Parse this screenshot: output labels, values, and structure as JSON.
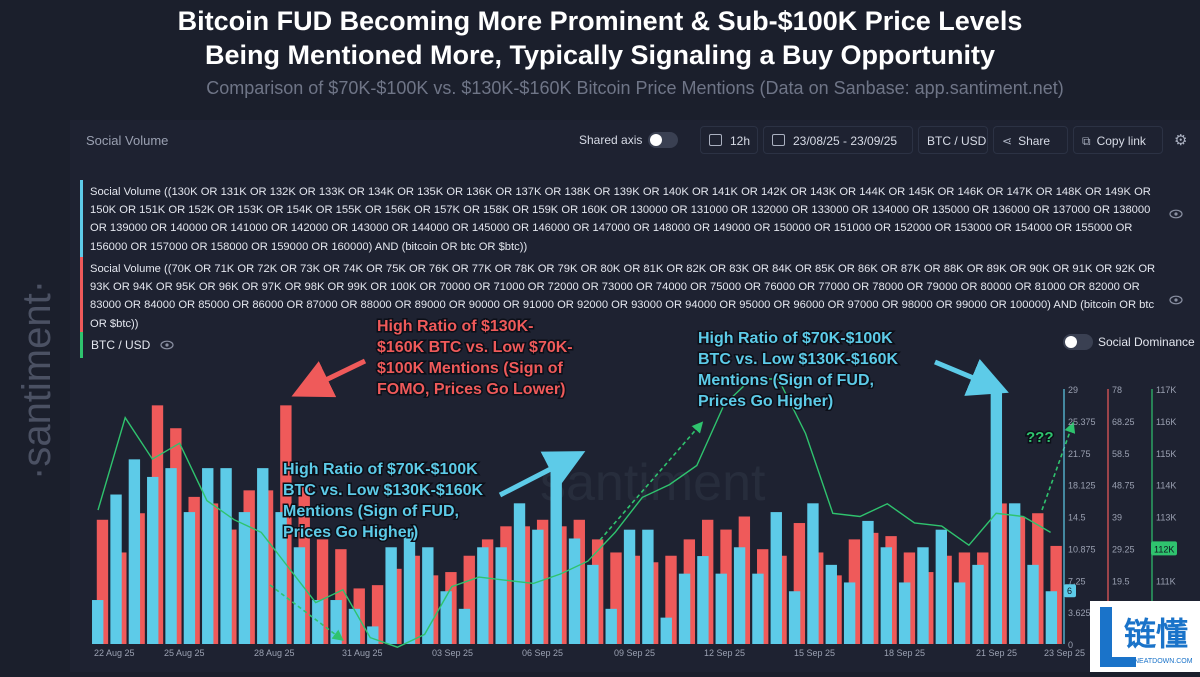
{
  "header": {
    "title_line1": "Bitcoin FUD Becoming More Prominent & Sub-$100K Price Levels",
    "title_line2": "Being Mentioned More, Typically Signaling a Buy Opportunity",
    "subtitle": "Comparison of $70K-$100K vs. $130K-$160K Bitcoin Price Mentions (Data on Sanbase: app.santiment.net)"
  },
  "brand": {
    "side_watermark": "·santiment·",
    "chart_watermark": "santiment",
    "logo_text": "链懂",
    "logo_sub": "NEATDOWN.COM"
  },
  "toolbar": {
    "panel_label": "Social Volume",
    "shared_axis": "Shared axis",
    "interval": "12h",
    "date_range": "23/08/25 - 23/09/25",
    "pair": "BTC / USD",
    "share": "Share",
    "copy_link": "Copy link"
  },
  "queries": {
    "q1": "Social Volume ((130K OR 131K OR 132K OR 133K OR 134K OR 135K OR 136K OR 137K OR 138K OR 139K OR 140K OR 141K OR 142K OR 143K OR 144K OR 145K OR 146K OR 147K OR 148K OR 149K OR 150K OR 151K OR 152K OR 153K OR 154K OR 155K OR 156K OR 157K OR 158K OR 159K OR 160K OR 130000 OR 131000 OR 132000 OR 133000 OR 134000 OR 135000 OR 136000 OR 137000 OR 138000 OR 139000 OR 140000 OR 141000 OR 142000 OR 143000 OR 144000 OR 145000 OR 146000 OR 147000 OR 148000 OR 149000 OR 150000 OR 151000 OR 152000 OR 153000 OR 154000 OR 155000 OR 156000 OR 157000 OR 158000 OR 159000 OR 160000) AND (bitcoin OR btc OR $btc))",
    "q2": "Social Volume ((70K OR 71K OR 72K OR 73K OR 74K OR 75K OR 76K OR 77K OR 78K OR 79K OR 80K OR 81K OR 82K OR 83K OR 84K OR 85K OR 86K OR 87K OR 88K OR 89K OR 90K OR 91K OR 92K OR 93K OR 94K OR 95K OR 96K OR 97K OR 98K OR 99K OR 100K OR 70000 OR 71000 OR 72000 OR 73000 OR 74000 OR 75000 OR 76000 OR 77000 OR 78000 OR 79000 OR 80000 OR 81000 OR 82000 OR 83000 OR 84000 OR 85000 OR 86000 OR 87000 OR 88000 OR 89000 OR 90000 OR 91000 OR 92000 OR 93000 OR 94000 OR 95000 OR 96000 OR 97000 OR 98000 OR 99000 OR 100000) AND (bitcoin OR btc OR $btc))"
  },
  "legend": {
    "btc": "BTC / USD",
    "social_dominance": "Social Dominance"
  },
  "annotations": {
    "red": [
      "High Ratio of $130K-",
      "$160K BTC vs. Low $70K-",
      "$100K Mentions (Sign of",
      "FOMO, Prices Go Lower)"
    ],
    "blue_left": [
      "High Ratio of $70K-$100K",
      "BTC vs. Low $130K-$160K",
      "Mentions (Sign of FUD,",
      "Prices Go Higher)"
    ],
    "blue_right": [
      "High Ratio of $70K-$100K",
      "BTC vs. Low $130K-$160K",
      "Mentions (Sign of FUD,",
      "Prices Go Higher)"
    ],
    "question": "???"
  },
  "colors": {
    "blue_series": "#5dcbe8",
    "red_series": "#ef5a5a",
    "price_line": "#2fc36e",
    "background": "#1b1f2c"
  },
  "chart_data": {
    "type": "bar",
    "x_labels": [
      "22 Aug 25",
      "25 Aug 25",
      "28 Aug 25",
      "31 Aug 25",
      "03 Sep 25",
      "06 Sep 25",
      "09 Sep 25",
      "12 Sep 25",
      "15 Sep 25",
      "18 Sep 25",
      "21 Sep 25",
      "23 Sep 25"
    ],
    "y_axis_blue": {
      "ticks": [
        "29",
        "25.375",
        "21.75",
        "18.125",
        "14.5",
        "10.875",
        "7.25",
        "3.625",
        "0"
      ],
      "ylim": [
        0,
        29
      ],
      "current_label": "6"
    },
    "y_axis_red": {
      "ticks": [
        "78",
        "68.25",
        "58.5",
        "48.75",
        "39",
        "29.25",
        "19.5",
        "9.75",
        "0"
      ],
      "ylim": [
        0,
        78
      ]
    },
    "y_axis_price": {
      "ticks": [
        "117K",
        "116K",
        "115K",
        "114K",
        "113K",
        "112K",
        "111K",
        "110K",
        "109K"
      ],
      "ylim": [
        109000,
        117000
      ],
      "current_label": "112K"
    },
    "series": [
      {
        "name": "130K-160K mentions",
        "axis": "left",
        "values": [
          5,
          17,
          21,
          19,
          20,
          15,
          20,
          20,
          15,
          20,
          15,
          11,
          5,
          5,
          4,
          2,
          11,
          13,
          11,
          6,
          4,
          11,
          11,
          16,
          13,
          21,
          12,
          9,
          4,
          13,
          13,
          3,
          8,
          10,
          8,
          11,
          8,
          15,
          6,
          16,
          9,
          7,
          14,
          11,
          7,
          11,
          13,
          7,
          9,
          29,
          16,
          9,
          6
        ]
      },
      {
        "name": "70K-100K mentions",
        "axis": "right",
        "values": [
          38,
          28,
          40,
          73,
          66,
          45,
          43,
          35,
          47,
          47,
          73,
          48,
          32,
          29,
          17,
          18,
          23,
          27,
          21,
          22,
          27,
          32,
          36,
          36,
          38,
          36,
          38,
          32,
          28,
          27,
          25,
          27,
          32,
          38,
          35,
          39,
          29,
          27,
          37,
          28,
          21,
          32,
          34,
          33,
          28,
          22,
          27,
          28,
          28,
          43,
          39,
          40,
          30
        ]
      },
      {
        "name": "BTC / USD",
        "axis": "price",
        "values": [
          113200,
          116100,
          114800,
          115300,
          113500,
          112900,
          112500,
          111400,
          110300,
          110700,
          109200,
          108900,
          109300,
          110800,
          111100,
          111000,
          110900,
          111200,
          111600,
          112500,
          113600,
          114000,
          114600,
          116500,
          117700,
          118000,
          115600,
          113100,
          113000,
          113400,
          112800,
          112700,
          112100,
          113100,
          113000,
          112500
        ]
      }
    ]
  }
}
